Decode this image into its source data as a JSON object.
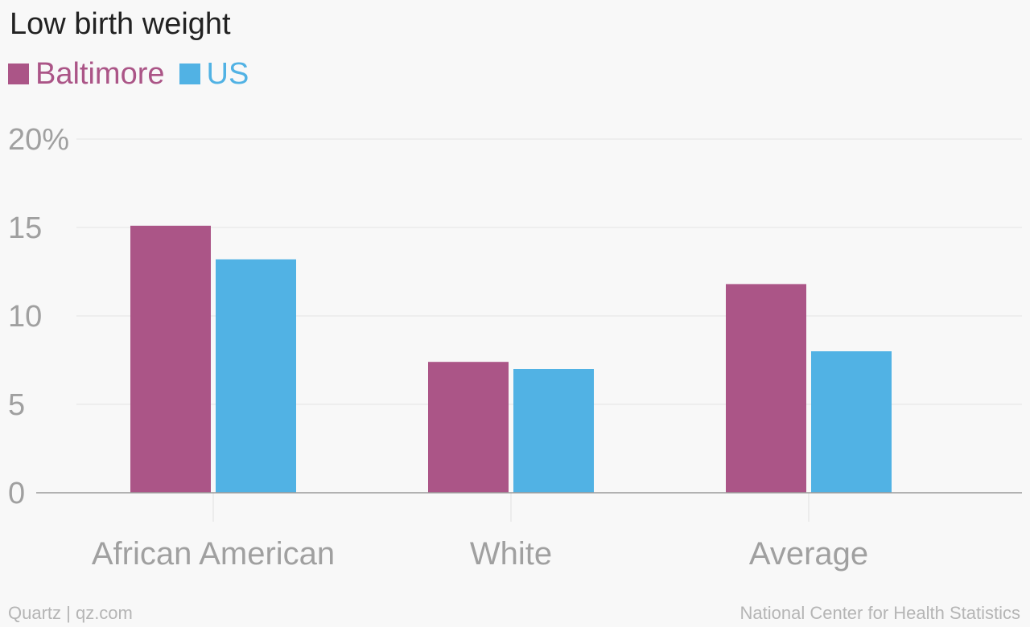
{
  "colors": {
    "baltimore": "#ab5587",
    "us": "#51b2e4"
  },
  "chart_data": {
    "type": "bar",
    "title": "Low birth weight",
    "categories": [
      "African American",
      "White",
      "Average"
    ],
    "series": [
      {
        "name": "Baltimore",
        "color": "#ab5587",
        "values": [
          15.1,
          7.4,
          11.8
        ]
      },
      {
        "name": "US",
        "color": "#51b2e4",
        "values": [
          13.2,
          7.0,
          8.0
        ]
      }
    ],
    "ylim": [
      0,
      20
    ],
    "yticks": [
      0,
      5,
      10,
      15,
      20
    ],
    "ytick_labels": [
      "0",
      "5",
      "10",
      "15",
      "20%"
    ],
    "grid": true,
    "legend_position": "top-left"
  },
  "footer": {
    "credit": "Quartz | qz.com",
    "source": "National Center for Health Statistics"
  }
}
